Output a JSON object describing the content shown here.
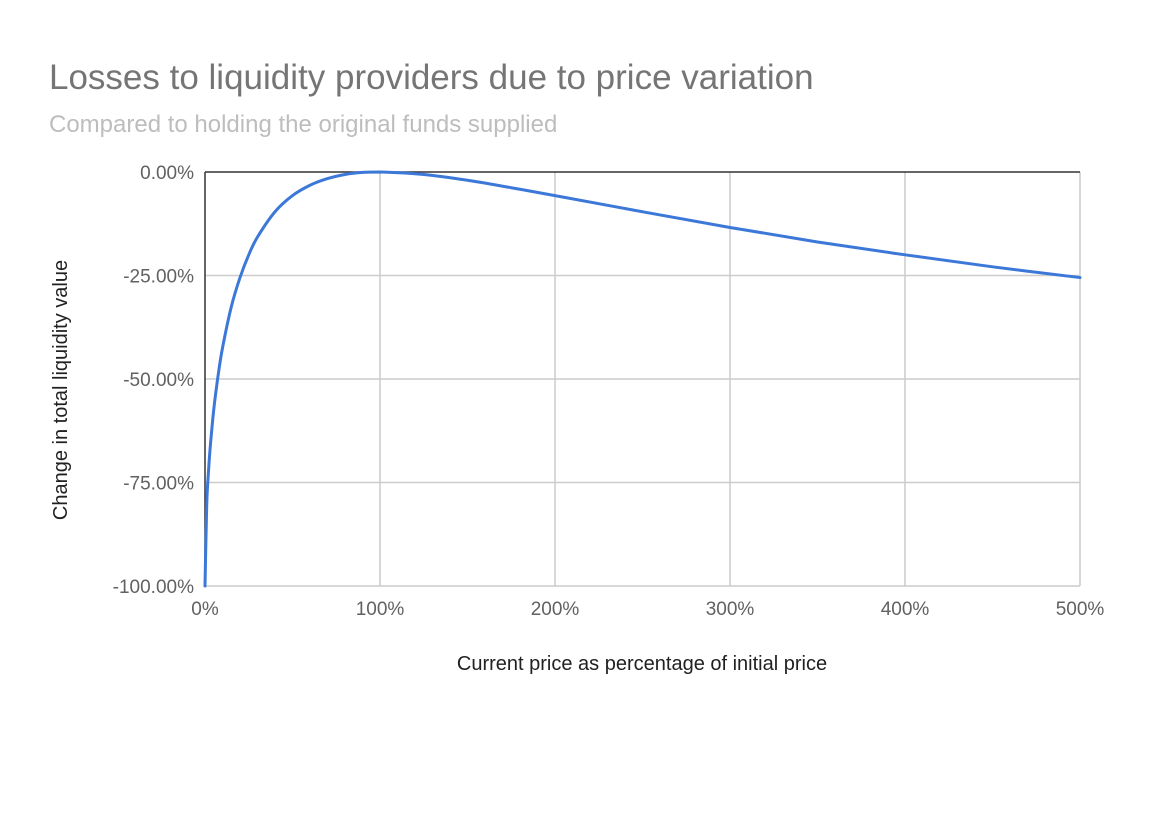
{
  "chart_data": {
    "type": "line",
    "title": "Losses to liquidity providers due to price variation",
    "subtitle": "Compared to holding the original funds supplied",
    "xlabel": "Current price as percentage of initial price",
    "ylabel": "Change in total liquidity value",
    "xlim": [
      0,
      500
    ],
    "ylim": [
      -100,
      0
    ],
    "x_ticks": [
      0,
      100,
      200,
      300,
      400,
      500
    ],
    "x_tick_labels": [
      "0%",
      "100%",
      "200%",
      "300%",
      "400%",
      "500%"
    ],
    "y_ticks": [
      0,
      -25,
      -50,
      -75,
      -100
    ],
    "y_tick_labels": [
      "0.00%",
      "-25.00%",
      "-50.00%",
      "-75.00%",
      "-100.00%"
    ],
    "grid": true,
    "legend": "none",
    "series": [
      {
        "color": "#3c78d8",
        "x": [
          0,
          1,
          2,
          3,
          5,
          7.5,
          10,
          15,
          20,
          25,
          30,
          40,
          50,
          60,
          70,
          80,
          90,
          100,
          125,
          150,
          175,
          200,
          250,
          300,
          350,
          400,
          450,
          500
        ],
        "y": [
          -100,
          -80.2,
          -72.3,
          -66.4,
          -57.4,
          -49.1,
          -42.5,
          -32.6,
          -25.5,
          -20.0,
          -15.7,
          -9.6,
          -5.7,
          -3.2,
          -1.6,
          -0.6,
          -0.1,
          0,
          -0.6,
          -2.0,
          -3.8,
          -5.7,
          -9.6,
          -13.4,
          -16.9,
          -20.0,
          -22.9,
          -25.5
        ]
      }
    ]
  }
}
